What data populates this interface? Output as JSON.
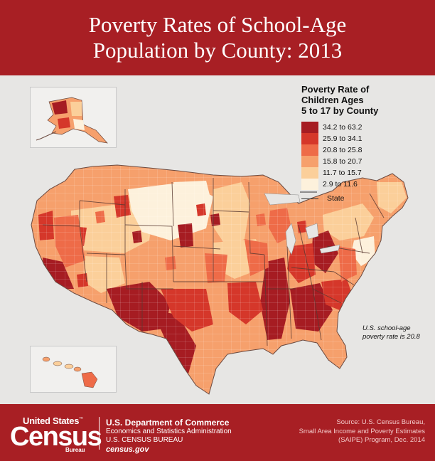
{
  "header": {
    "title_line1": "Poverty Rates of School-Age",
    "title_line2": "Population by County: 2013"
  },
  "legend": {
    "title_lines": [
      "Poverty Rate of",
      "Children Ages",
      "5 to 17 by County"
    ],
    "items": [
      {
        "label": "34.2 to 63.2",
        "color": "#a61c22"
      },
      {
        "label": "25.9 to 34.1",
        "color": "#d5372a"
      },
      {
        "label": "20.8 to 25.8",
        "color": "#ee6b48"
      },
      {
        "label": "15.8 to 20.7",
        "color": "#f6a06c"
      },
      {
        "label": "11.7 to 15.7",
        "color": "#fbcf9a"
      },
      {
        "label": "2.9 to 11.6",
        "color": "#fdf1dc"
      }
    ],
    "state_label": "State"
  },
  "note": [
    "U.S. school-age",
    "poverty rate is 20.8"
  ],
  "footer": {
    "logo": {
      "top": "United States",
      "tm": "™",
      "main": "Census",
      "sub": "Bureau"
    },
    "dept_line1": "U.S. Department of Commerce",
    "dept_line2": "Economics and Statistics Administration",
    "dept_line3": "U.S. CENSUS BUREAU",
    "dept_line4": "census.gov",
    "source_lines": [
      "Source: U.S. Census Bureau,",
      "Small Area Income and Poverty Estimates",
      "(SAIPE) Program, Dec. 2014"
    ]
  }
}
